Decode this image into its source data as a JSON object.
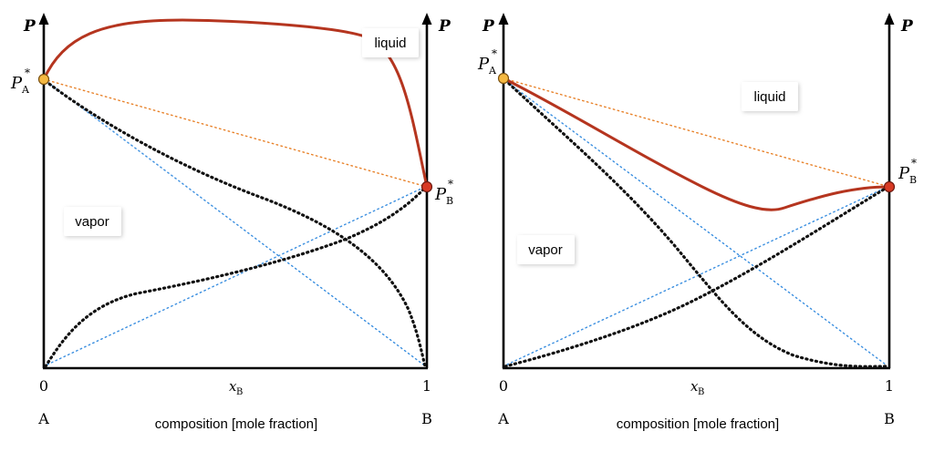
{
  "panels": [
    {
      "axis_left": "P",
      "axis_right": "P",
      "pa_label": "P",
      "pa_sub": "A",
      "pb_label": "P",
      "pb_sub": "B",
      "star": "*",
      "region_top": "liquid",
      "region_bottom": "vapor",
      "x0": "0",
      "x1": "1",
      "xlabel_main": "x",
      "xlabel_sub": "B",
      "end_a": "A",
      "end_b": "B",
      "xtitle": "composition [mole fraction]"
    },
    {
      "axis_left": "P",
      "axis_right": "P",
      "pa_label": "P",
      "pa_sub": "A",
      "pb_label": "P",
      "pb_sub": "B",
      "star": "*",
      "region_top": "liquid",
      "region_bottom": "vapor",
      "x0": "0",
      "x1": "1",
      "xlabel_main": "x",
      "xlabel_sub": "B",
      "end_a": "A",
      "end_b": "B",
      "xtitle": "composition [mole fraction]"
    }
  ],
  "colors": {
    "liquid_curve": "#b5351f",
    "pa_point": "#f5b942",
    "pb_point": "#d83a24",
    "ideal_lines": "#3b8fe0",
    "raoult_line": "#e8822a"
  }
}
